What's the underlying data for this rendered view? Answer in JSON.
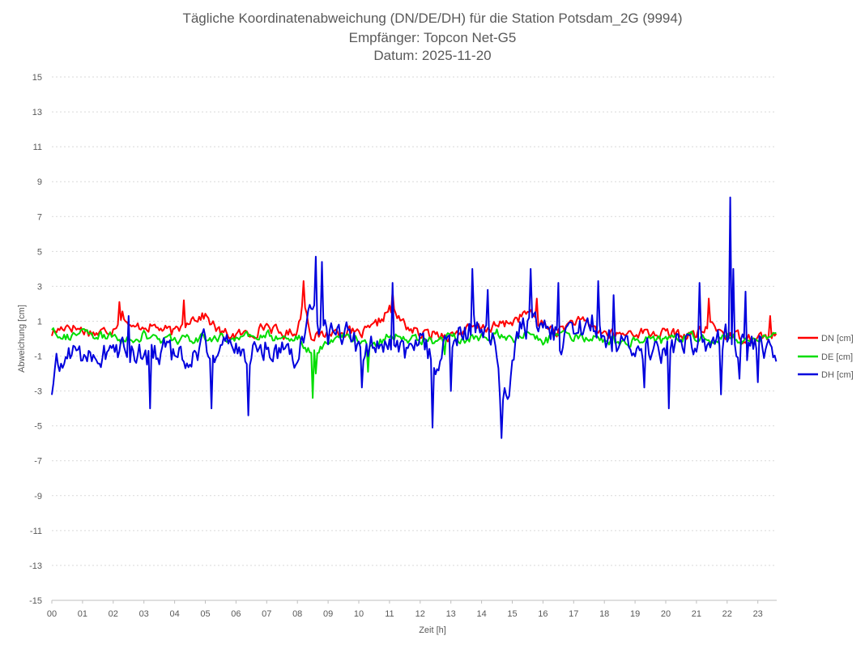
{
  "chart_data": {
    "type": "line",
    "title": [
      "Tägliche Koordinatenabweichung (DN/DE/DH) für die Station Potsdam_2G (9994)",
      "Empfänger: Topcon Net-G5",
      "Datum: 2025-11-20"
    ],
    "xlabel": "Zeit [h]",
    "ylabel": "Abweichung [cm]",
    "xlim": [
      0,
      23.6
    ],
    "ylim": [
      -15,
      15
    ],
    "x_ticks": [
      "00",
      "01",
      "02",
      "03",
      "04",
      "05",
      "06",
      "07",
      "08",
      "09",
      "10",
      "11",
      "12",
      "13",
      "14",
      "15",
      "16",
      "17",
      "18",
      "19",
      "20",
      "21",
      "22",
      "23"
    ],
    "y_ticks": [
      "15",
      "13",
      "11",
      "9",
      "7",
      "5",
      "3",
      "1",
      "-1",
      "-3",
      "-5",
      "-7",
      "-9",
      "-11",
      "-13",
      "-15"
    ],
    "grid": "horizontal dashed",
    "legend_position": "right",
    "x_step_hours": 0.05,
    "series": [
      {
        "name": "DN [cm]",
        "color": "#ff0000",
        "anchors": [
          [
            0,
            0.3
          ],
          [
            0.5,
            0.8
          ],
          [
            1,
            0.5
          ],
          [
            1.5,
            0.3
          ],
          [
            2,
            0.6
          ],
          [
            2.3,
            1.5
          ],
          [
            2.6,
            0.5
          ],
          [
            3,
            0.8
          ],
          [
            3.5,
            0.6
          ],
          [
            4,
            0.3
          ],
          [
            4.5,
            1.2
          ],
          [
            5,
            1.3
          ],
          [
            5.5,
            0.3
          ],
          [
            6,
            0.2
          ],
          [
            6.5,
            0.3
          ],
          [
            7,
            0.8
          ],
          [
            7.5,
            0.2
          ],
          [
            8,
            0.5
          ],
          [
            8.2,
            2.2
          ],
          [
            8.5,
            0
          ],
          [
            9,
            0.3
          ],
          [
            9.5,
            0.5
          ],
          [
            10,
            0.2
          ],
          [
            10.5,
            0.6
          ],
          [
            11,
            1.7
          ],
          [
            11.5,
            0.8
          ],
          [
            12,
            0.2
          ],
          [
            12.5,
            0.3
          ],
          [
            13,
            0.2
          ],
          [
            13.5,
            0.5
          ],
          [
            14,
            0.6
          ],
          [
            14.5,
            0.7
          ],
          [
            15,
            1
          ],
          [
            15.5,
            1.5
          ],
          [
            16,
            0.8
          ],
          [
            16.5,
            0.4
          ],
          [
            17,
            1
          ],
          [
            17.5,
            0.8
          ],
          [
            18,
            0.3
          ],
          [
            18.5,
            0.2
          ],
          [
            19,
            0.4
          ],
          [
            19.5,
            0.3
          ],
          [
            20,
            0.3
          ],
          [
            20.5,
            0.2
          ],
          [
            21,
            0.2
          ],
          [
            21.5,
            0.8
          ],
          [
            22,
            0.2
          ],
          [
            22.5,
            0.1
          ],
          [
            23,
            0.1
          ],
          [
            23.6,
            0.2
          ]
        ],
        "noise": 0.5,
        "spikes": [
          [
            2.2,
            2.1
          ],
          [
            4.3,
            2.2
          ],
          [
            8.2,
            3.3
          ],
          [
            11.1,
            2.7
          ],
          [
            15.8,
            2.3
          ],
          [
            21.4,
            2.3
          ],
          [
            23.4,
            1.3
          ]
        ]
      },
      {
        "name": "DE [cm]",
        "color": "#00dd00",
        "anchors": [
          [
            0,
            0.6
          ],
          [
            0.5,
            0.1
          ],
          [
            1,
            0.3
          ],
          [
            1.5,
            0.1
          ],
          [
            2,
            0.1
          ],
          [
            2.5,
            -0.1
          ],
          [
            3,
            0.2
          ],
          [
            3.5,
            -0.1
          ],
          [
            4,
            0
          ],
          [
            4.5,
            -0.1
          ],
          [
            5,
            0
          ],
          [
            5.5,
            0.1
          ],
          [
            6,
            0
          ],
          [
            6.5,
            0.1
          ],
          [
            7,
            0.2
          ],
          [
            7.5,
            0
          ],
          [
            8,
            0.2
          ],
          [
            8.5,
            -1
          ],
          [
            9,
            0
          ],
          [
            9.5,
            0.2
          ],
          [
            10,
            -0.1
          ],
          [
            10.5,
            -0.3
          ],
          [
            11,
            0.2
          ],
          [
            11.5,
            0
          ],
          [
            12,
            0
          ],
          [
            12.5,
            -0.2
          ],
          [
            13,
            0.1
          ],
          [
            13.5,
            0
          ],
          [
            14,
            0
          ],
          [
            14.5,
            0.3
          ],
          [
            15,
            0
          ],
          [
            15.5,
            0.2
          ],
          [
            16,
            -0.1
          ],
          [
            16.5,
            0.1
          ],
          [
            17,
            0
          ],
          [
            17.5,
            0.1
          ],
          [
            18,
            0
          ],
          [
            18.5,
            -0.2
          ],
          [
            19,
            0
          ],
          [
            19.5,
            0.1
          ],
          [
            20,
            -0.2
          ],
          [
            20.5,
            0.1
          ],
          [
            21,
            0
          ],
          [
            21.5,
            -0.1
          ],
          [
            22,
            0.1
          ],
          [
            22.5,
            0
          ],
          [
            23,
            0
          ],
          [
            23.6,
            0
          ]
        ],
        "noise": 0.45,
        "spikes": [
          [
            8.5,
            -3.4
          ],
          [
            8.6,
            -2
          ],
          [
            10.3,
            -1.9
          ],
          [
            12.8,
            -0.9
          ]
        ]
      },
      {
        "name": "DH [cm]",
        "color": "#0000dd",
        "anchors": [
          [
            0,
            -3
          ],
          [
            0.15,
            -1.8
          ],
          [
            0.4,
            -1.2
          ],
          [
            0.7,
            -0.6
          ],
          [
            1,
            -0.8
          ],
          [
            1.5,
            -1
          ],
          [
            2,
            -0.5
          ],
          [
            2.5,
            -0.8
          ],
          [
            3,
            -1.2
          ],
          [
            3.3,
            -0.6
          ],
          [
            3.6,
            -0.5
          ],
          [
            4,
            -1.2
          ],
          [
            4.5,
            -1
          ],
          [
            5,
            -0.4
          ],
          [
            5.5,
            -0.5
          ],
          [
            6,
            -0.6
          ],
          [
            6.5,
            -1
          ],
          [
            7,
            -0.3
          ],
          [
            7.5,
            -0.6
          ],
          [
            8,
            -0.8
          ],
          [
            8.3,
            0.8
          ],
          [
            8.5,
            2.2
          ],
          [
            8.8,
            0.3
          ],
          [
            9,
            0.2
          ],
          [
            9.5,
            0.5
          ],
          [
            10,
            -0.4
          ],
          [
            10.5,
            -0.6
          ],
          [
            11,
            0
          ],
          [
            11.5,
            -0.8
          ],
          [
            12,
            -0.5
          ],
          [
            12.5,
            -1.2
          ],
          [
            13,
            -0.3
          ],
          [
            13.5,
            0.6
          ],
          [
            14,
            0.8
          ],
          [
            14.3,
            0.3
          ],
          [
            14.5,
            -1
          ],
          [
            14.65,
            -4.5
          ],
          [
            14.8,
            -3.5
          ],
          [
            15,
            -1.5
          ],
          [
            15.3,
            0.5
          ],
          [
            15.6,
            1
          ],
          [
            16,
            0.2
          ],
          [
            16.5,
            0.3
          ],
          [
            17,
            -0.3
          ],
          [
            17.5,
            1
          ],
          [
            18,
            0.3
          ],
          [
            18.5,
            -0.5
          ],
          [
            19,
            -0.5
          ],
          [
            19.5,
            -0.8
          ],
          [
            20,
            -1
          ],
          [
            20.5,
            0.3
          ],
          [
            21,
            0
          ],
          [
            21.5,
            -0.3
          ],
          [
            22,
            0.2
          ],
          [
            22.5,
            -0.5
          ],
          [
            23,
            -0.3
          ],
          [
            23.6,
            -0.5
          ]
        ],
        "noise": 1.3,
        "spikes": [
          [
            2.5,
            1.3
          ],
          [
            3.2,
            -4
          ],
          [
            5.2,
            -4
          ],
          [
            6.4,
            -4.4
          ],
          [
            8.6,
            4.7
          ],
          [
            8.8,
            4.4
          ],
          [
            10.1,
            -2.8
          ],
          [
            11.1,
            3.2
          ],
          [
            12.4,
            -5.1
          ],
          [
            13,
            -3
          ],
          [
            13.7,
            4
          ],
          [
            14.2,
            2.8
          ],
          [
            14.65,
            -5.7
          ],
          [
            15.6,
            4
          ],
          [
            16.5,
            3.2
          ],
          [
            17.8,
            3.3
          ],
          [
            18.3,
            2.5
          ],
          [
            19.3,
            -2.8
          ],
          [
            20.1,
            -4
          ],
          [
            21.1,
            3.2
          ],
          [
            21.8,
            -3.2
          ],
          [
            22.1,
            8.1
          ],
          [
            22.2,
            4
          ],
          [
            22.4,
            -2.3
          ],
          [
            22.6,
            2.7
          ],
          [
            23,
            -2.5
          ]
        ]
      }
    ]
  }
}
